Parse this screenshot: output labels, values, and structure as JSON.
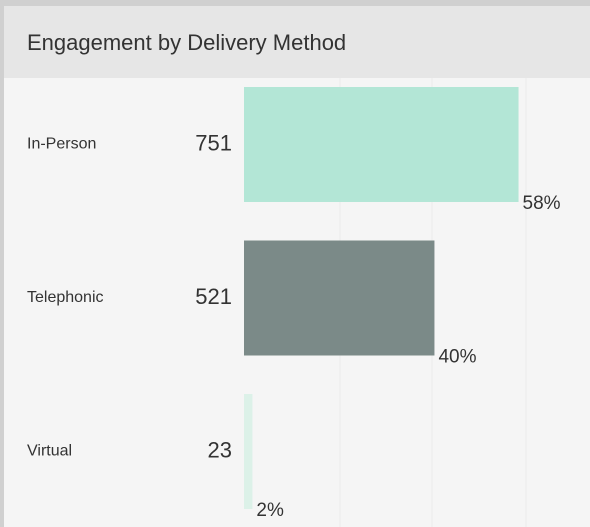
{
  "chart_data": {
    "type": "bar",
    "orientation": "horizontal",
    "title": "Engagement by Delivery Method",
    "categories": [
      "In-Person",
      "Telephonic",
      "Virtual"
    ],
    "values": [
      751,
      521,
      23
    ],
    "percent_labels": [
      "58%",
      "40%",
      "2%"
    ],
    "colors": [
      "#b3e6d6",
      "#7b8a88",
      "#dcf1e8"
    ],
    "xlim": [
      0,
      900
    ]
  }
}
